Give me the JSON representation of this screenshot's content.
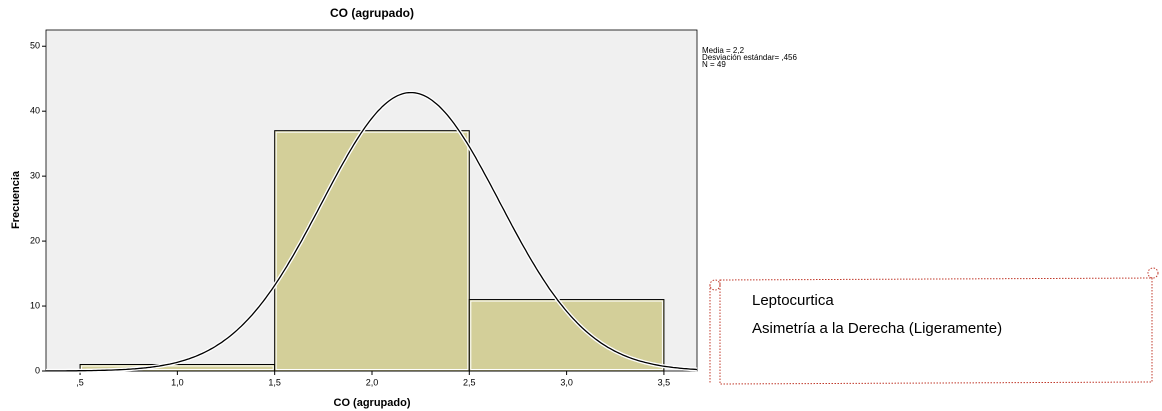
{
  "chart_data": {
    "type": "histogram",
    "title": "CO (agrupado)",
    "xlabel": "CO (agrupado)",
    "ylabel": "Frecuencia",
    "bins": [
      0.5,
      1.5,
      2.5,
      3.5
    ],
    "counts": [
      1,
      37,
      11
    ],
    "color": "#d3cf99",
    "curve_color": "#000000",
    "xlim": [
      0.325,
      3.67
    ],
    "ylim": [
      0,
      52.5
    ],
    "xticks": [
      {
        "value": 0.5,
        "label": ",5"
      },
      {
        "value": 1.0,
        "label": "1,0"
      },
      {
        "value": 1.5,
        "label": "1,5"
      },
      {
        "value": 2.0,
        "label": "2,0"
      },
      {
        "value": 2.5,
        "label": "2,5"
      },
      {
        "value": 3.0,
        "label": "3,0"
      },
      {
        "value": 3.5,
        "label": "3,5"
      }
    ],
    "yticks": [
      0,
      10,
      20,
      30,
      40,
      50
    ],
    "stats": [
      {
        "label": "Media = 2,2",
        "value": 2.2
      },
      {
        "label": "Desviación estándar= ,456",
        "value": 0.456
      },
      {
        "label": "N = 49",
        "value": 49
      }
    ],
    "annotations": [
      "Leptocurtica",
      "Asimetría a la Derecha (Ligeramente)"
    ]
  }
}
